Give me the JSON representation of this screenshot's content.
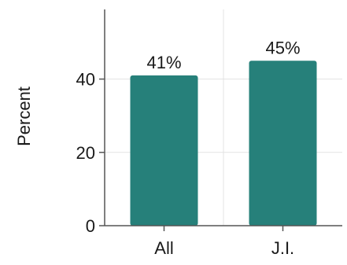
{
  "chart_data": {
    "type": "bar",
    "categories": [
      "All",
      "J.I."
    ],
    "values": [
      41,
      45
    ],
    "data_labels": [
      "41%",
      "45%"
    ],
    "ylabel": "Percent",
    "xlabel": "",
    "ylim": [
      0,
      59
    ],
    "yticks": [
      0,
      20,
      40
    ],
    "ytick_labels": [
      "0",
      "20",
      "40"
    ],
    "grid": true,
    "bar_color": "#26807a",
    "axis_color": "#555555",
    "grid_color": "#e3e3e3"
  }
}
